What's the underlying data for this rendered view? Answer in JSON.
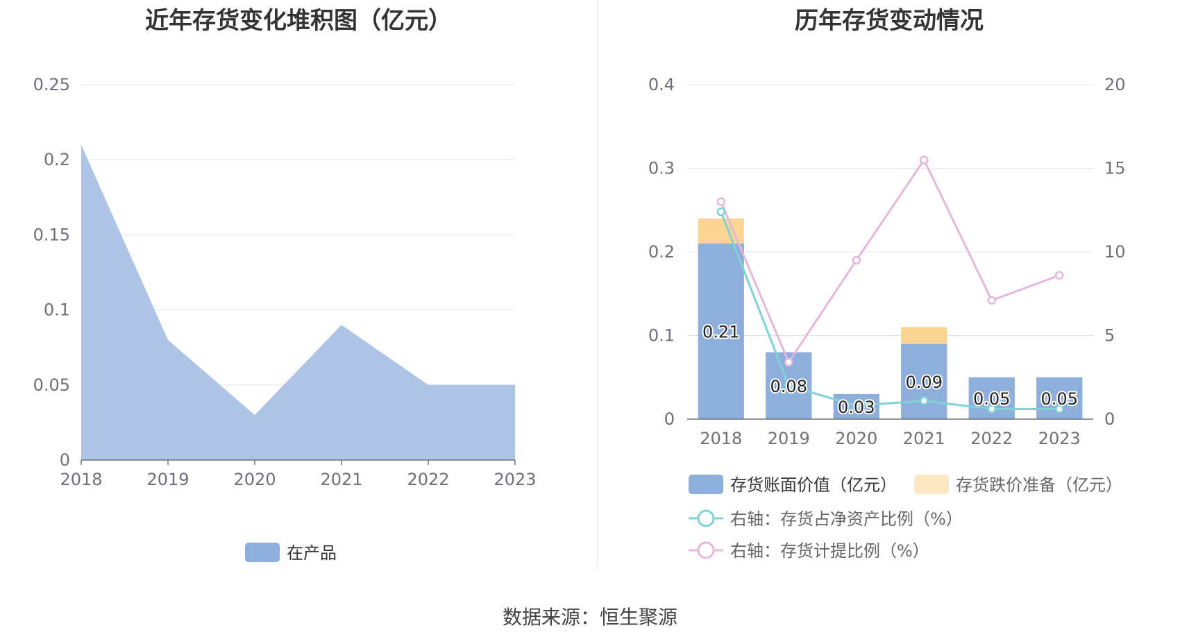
{
  "left_chart": {
    "title": "近年存货变化堆积图（亿元）",
    "legend_label": "在产品",
    "color": "#aec4e6",
    "legend_color": "#8eaedc"
  },
  "right_chart": {
    "title": "历年存货变动情况",
    "legend": {
      "book_value": "存货账面价值（亿元）",
      "impairment": "存货跌价准备（亿元）",
      "net_asset_ratio": "右轴：存货占净资产比例（%）",
      "provision_ratio": "右轴：存货计提比例（%）"
    },
    "colors": {
      "book_value": "#8eaedc",
      "impairment": "#fdd593",
      "net_asset_ratio": "#7fd3d6",
      "provision_ratio": "#e5b7dc"
    }
  },
  "source_text": "数据来源：恒生聚源",
  "chart_data": [
    {
      "type": "area",
      "title": "近年存货变化堆积图（亿元）",
      "x": [
        "2018",
        "2019",
        "2020",
        "2021",
        "2022",
        "2023"
      ],
      "series": [
        {
          "name": "在产品",
          "values": [
            0.21,
            0.08,
            0.03,
            0.09,
            0.05,
            0.05
          ]
        }
      ],
      "ylim": [
        0,
        0.25
      ],
      "yticks": [
        "0",
        "0.05",
        "0.1",
        "0.15",
        "0.2",
        "0.25"
      ],
      "grid": true,
      "legend_position": "bottom"
    },
    {
      "type": "bar",
      "title": "历年存货变动情况",
      "categories": [
        "2018",
        "2019",
        "2020",
        "2021",
        "2022",
        "2023"
      ],
      "series": [
        {
          "name": "存货账面价值（亿元）",
          "type": "bar",
          "stack": "inv",
          "values": [
            0.21,
            0.08,
            0.03,
            0.09,
            0.05,
            0.05
          ],
          "labels": [
            "0.21",
            "0.08",
            "0.03",
            "0.09",
            "0.05",
            "0.05"
          ]
        },
        {
          "name": "存货跌价准备（亿元）",
          "type": "bar",
          "stack": "inv",
          "values": [
            0.03,
            0,
            0,
            0.02,
            0,
            0
          ]
        },
        {
          "name": "右轴：存货占净资产比例（%）",
          "type": "line",
          "axis": "right",
          "values": [
            12.4,
            2.0,
            0.8,
            1.1,
            0.6,
            0.6
          ]
        },
        {
          "name": "右轴：存货计提比例（%）",
          "type": "line",
          "axis": "right",
          "values": [
            13.0,
            3.4,
            9.5,
            15.5,
            7.1,
            8.6
          ]
        }
      ],
      "ylim_left": [
        0,
        0.4
      ],
      "yticks_left": [
        "0",
        "0.1",
        "0.2",
        "0.3",
        "0.4"
      ],
      "ylim_right": [
        0,
        20
      ],
      "yticks_right": [
        "0",
        "5",
        "10",
        "15",
        "20"
      ],
      "grid": true,
      "legend_position": "bottom"
    }
  ]
}
